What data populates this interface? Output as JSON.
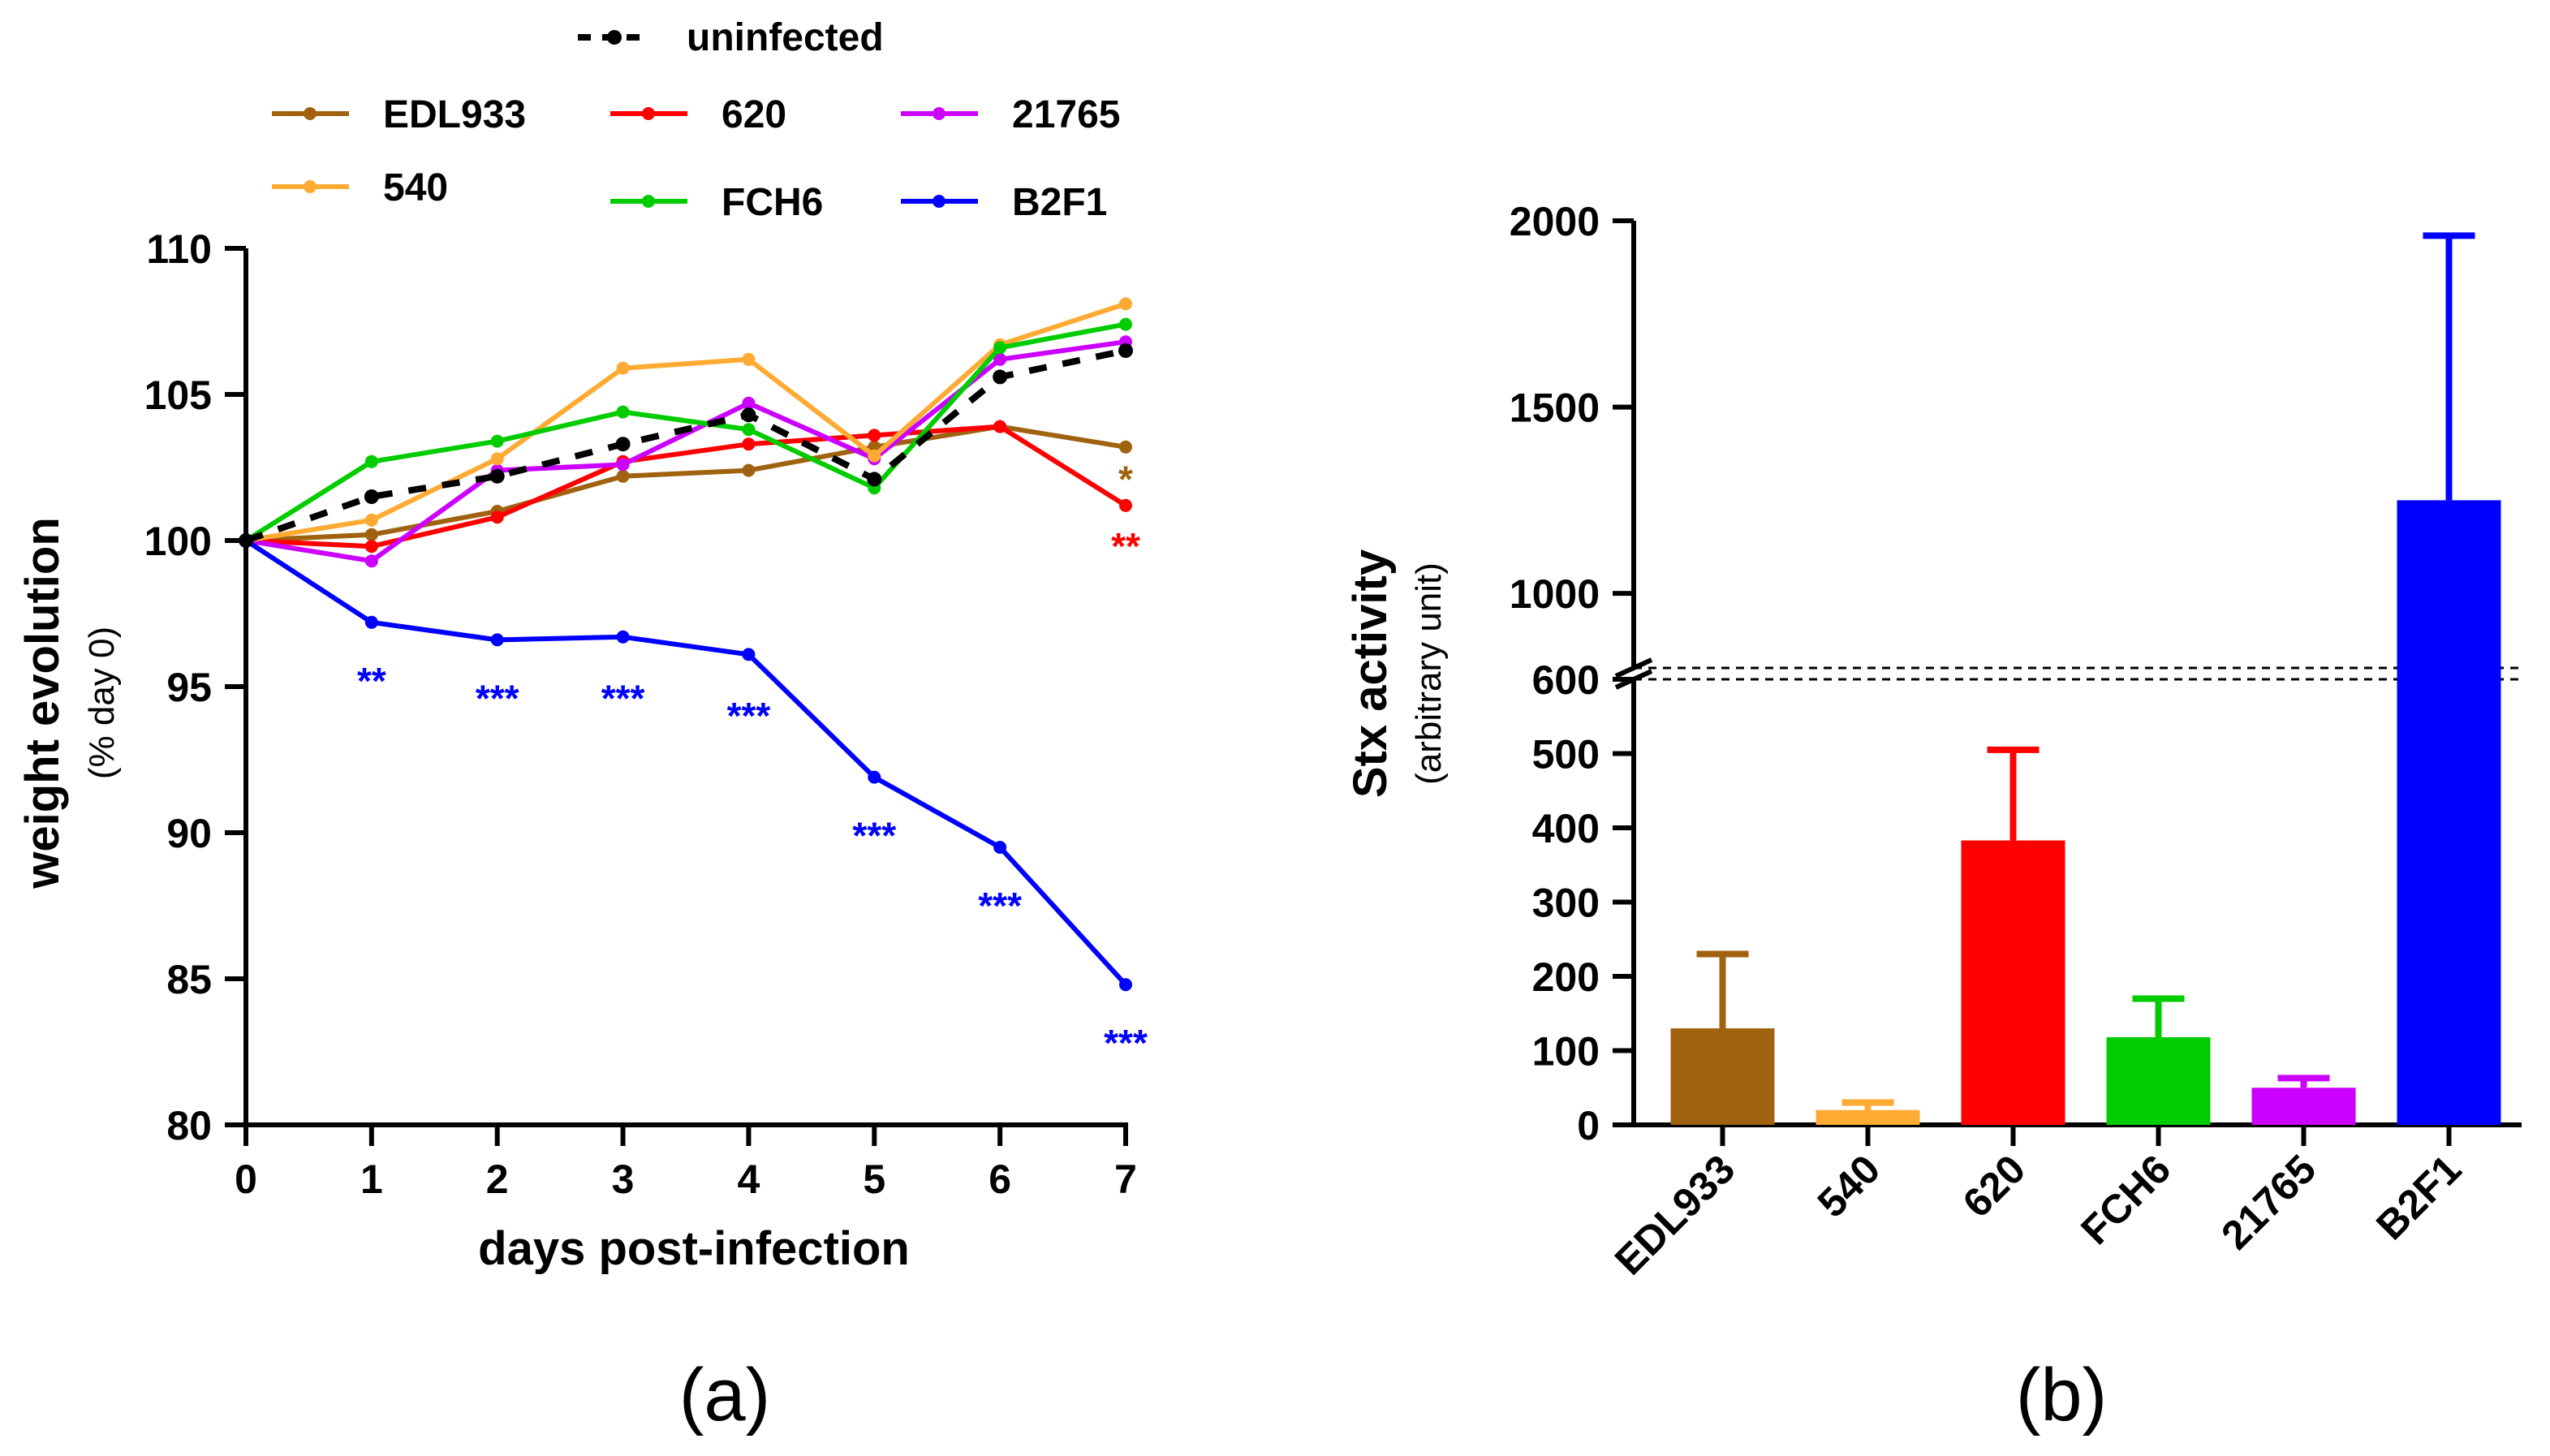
{
  "chart_data": [
    {
      "type": "line",
      "panel_label": "(a)",
      "xlabel": "days post-infection",
      "ylabel": "weight evolution",
      "ylabel_sub": "(% day 0)",
      "xlim": [
        0,
        7
      ],
      "ylim": [
        80,
        110
      ],
      "xticks": [
        "0",
        "1",
        "2",
        "3",
        "4",
        "5",
        "6",
        "7"
      ],
      "yticks": [
        "80",
        "85",
        "90",
        "95",
        "100",
        "105",
        "110"
      ],
      "x": [
        0,
        1,
        2,
        3,
        4,
        5,
        6,
        7
      ],
      "series": [
        {
          "name": "uninfected",
          "color": "#000000",
          "dashed": true,
          "values": [
            100,
            101.5,
            102.2,
            103.3,
            104.3,
            102.1,
            105.6,
            106.5
          ]
        },
        {
          "name": "EDL933",
          "color": "#a0620f",
          "dashed": false,
          "values": [
            100,
            100.2,
            101.0,
            102.2,
            102.4,
            103.2,
            103.9,
            103.2
          ]
        },
        {
          "name": "620",
          "color": "#ff0000",
          "dashed": false,
          "values": [
            100,
            99.8,
            100.8,
            102.7,
            103.3,
            103.6,
            103.9,
            101.2
          ]
        },
        {
          "name": "21765",
          "color": "#cc00ff",
          "dashed": false,
          "values": [
            100,
            99.3,
            102.4,
            102.6,
            104.7,
            102.8,
            106.2,
            106.8
          ]
        },
        {
          "name": "540",
          "color": "#ffaa33",
          "dashed": false,
          "values": [
            100,
            100.7,
            102.8,
            105.9,
            106.2,
            102.9,
            106.7,
            108.1
          ]
        },
        {
          "name": "FCH6",
          "color": "#00cc00",
          "dashed": false,
          "values": [
            100,
            102.7,
            103.4,
            104.4,
            103.8,
            101.8,
            106.6,
            107.4
          ]
        },
        {
          "name": "B2F1",
          "color": "#0000ff",
          "dashed": false,
          "values": [
            100,
            97.2,
            96.6,
            96.7,
            96.1,
            91.9,
            89.5,
            84.8
          ]
        }
      ],
      "legend_header": "uninfected",
      "legend": [
        "EDL933",
        "620",
        "21765",
        "540",
        "FCH6",
        "B2F1"
      ],
      "annotations": [
        {
          "text": "**",
          "x": 1,
          "y": 95.2,
          "color": "#0000ff"
        },
        {
          "text": "***",
          "x": 2,
          "y": 94.6,
          "color": "#0000ff"
        },
        {
          "text": "***",
          "x": 3,
          "y": 94.6,
          "color": "#0000ff"
        },
        {
          "text": "***",
          "x": 4,
          "y": 94.0,
          "color": "#0000ff"
        },
        {
          "text": "***",
          "x": 5,
          "y": 89.9,
          "color": "#0000ff"
        },
        {
          "text": "***",
          "x": 6,
          "y": 87.5,
          "color": "#0000ff"
        },
        {
          "text": "***",
          "x": 7,
          "y": 82.8,
          "color": "#0000ff"
        },
        {
          "text": "*",
          "x": 7,
          "y": 102.1,
          "color": "#a0620f"
        },
        {
          "text": "**",
          "x": 7,
          "y": 99.8,
          "color": "#ff0000"
        }
      ]
    },
    {
      "type": "bar",
      "panel_label": "(b)",
      "ylabel": "Stx activity",
      "ylabel_sub": "(arbitrary unit)",
      "categories": [
        "EDL933",
        "540",
        "620",
        "FCH6",
        "21765",
        "B2F1"
      ],
      "values": [
        130,
        20,
        383,
        118,
        50,
        1250
      ],
      "errors": [
        100,
        10,
        122,
        52,
        13,
        710
      ],
      "colors": [
        "#a0620f",
        "#ffaa33",
        "#ff0000",
        "#00cc00",
        "#cc00ff",
        "#0000ff"
      ],
      "y_axis_break": [
        600,
        800
      ],
      "yticks_lower": [
        "0",
        "100",
        "200",
        "300",
        "400",
        "500",
        "600"
      ],
      "yticks_upper": [
        "1000",
        "1500",
        "2000"
      ],
      "ylim": [
        0,
        2000
      ]
    }
  ]
}
